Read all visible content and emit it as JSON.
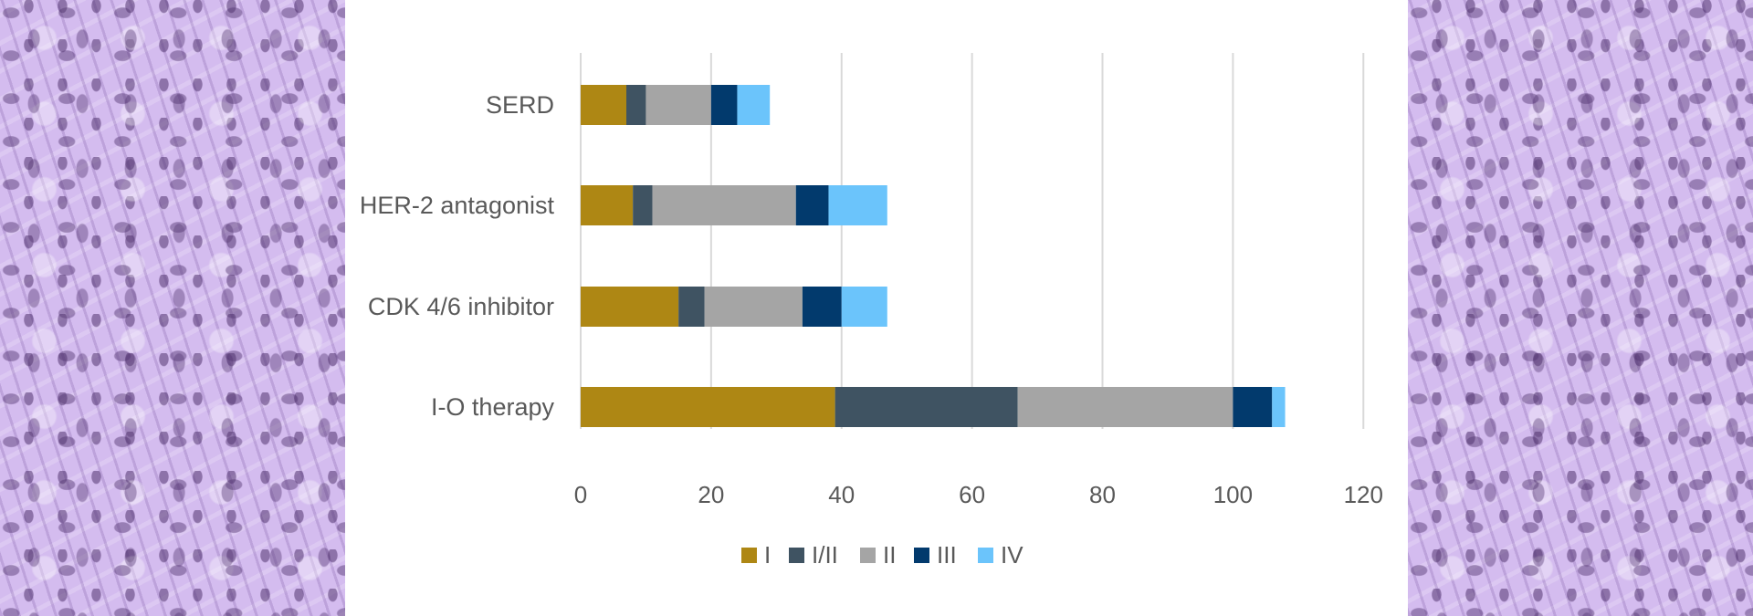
{
  "chart_data": {
    "type": "bar",
    "orientation": "horizontal",
    "stacked": true,
    "title": "",
    "xlabel": "",
    "ylabel": "",
    "xlim": [
      0,
      120
    ],
    "x_ticks": [
      0,
      20,
      40,
      60,
      80,
      100,
      120
    ],
    "grid": "vertical",
    "legend_position": "bottom",
    "categories": [
      "SERD",
      "HER-2 antagonist",
      "CDK 4/6 inhibitor",
      "I-O therapy"
    ],
    "series": [
      {
        "name": "I",
        "color": "#ae8714",
        "values": [
          7,
          8,
          15,
          39
        ]
      },
      {
        "name": "I/II",
        "color": "#3f5362",
        "values": [
          3,
          3,
          4,
          28
        ]
      },
      {
        "name": "II",
        "color": "#a5a5a5",
        "values": [
          10,
          22,
          15,
          33
        ]
      },
      {
        "name": "III",
        "color": "#023a6d",
        "values": [
          4,
          5,
          6,
          6
        ]
      },
      {
        "name": "IV",
        "color": "#6bc4fb",
        "values": [
          5,
          9,
          7,
          2
        ]
      }
    ]
  },
  "colors": {
    "tissue_background": "#d5bdf0",
    "panel": "#ffffff",
    "gridline": "#d9d9d9",
    "text": "#595959"
  }
}
